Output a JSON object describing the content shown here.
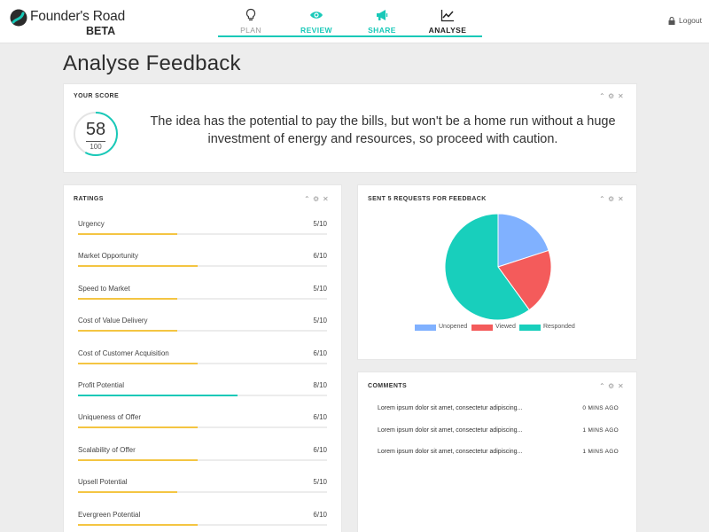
{
  "app": {
    "name_light": "Founder's",
    "name_bold": "Road",
    "badge": "BETA",
    "accent": "#18c9b8"
  },
  "nav": {
    "items": [
      {
        "label": "PLAN",
        "icon": "lightbulb-icon",
        "state": "done"
      },
      {
        "label": "REVIEW",
        "icon": "eye-icon",
        "state": "done"
      },
      {
        "label": "SHARE",
        "icon": "megaphone-icon",
        "state": "done"
      },
      {
        "label": "ANALYSE",
        "icon": "line-chart-icon",
        "state": "active"
      }
    ],
    "logout": "Logout"
  },
  "page": {
    "title": "Analyse Feedback"
  },
  "score_card": {
    "title": "YOUR SCORE",
    "score": "58",
    "max": "100",
    "score_fraction": 0.58,
    "summary": "The idea has the potential to pay the bills, but won't be a home run without a huge investment of energy and resources, so proceed with caution."
  },
  "ratings_card": {
    "title": "RATINGS",
    "items": [
      {
        "label": "Urgency",
        "value": "5/10",
        "score": 5,
        "color": "#f4c542"
      },
      {
        "label": "Market Opportunity",
        "value": "6/10",
        "score": 6,
        "color": "#f4c542"
      },
      {
        "label": "Speed to Market",
        "value": "5/10",
        "score": 5,
        "color": "#f4c542"
      },
      {
        "label": "Cost of Value Delivery",
        "value": "5/10",
        "score": 5,
        "color": "#f4c542"
      },
      {
        "label": "Cost of Customer Acquisition",
        "value": "6/10",
        "score": 6,
        "color": "#f4c542"
      },
      {
        "label": "Profit Potential",
        "value": "8/10",
        "score": 8,
        "color": "#18c9b8"
      },
      {
        "label": "Uniqueness of Offer",
        "value": "6/10",
        "score": 6,
        "color": "#f4c542"
      },
      {
        "label": "Scalability of Offer",
        "value": "6/10",
        "score": 6,
        "color": "#f4c542"
      },
      {
        "label": "Upsell Potential",
        "value": "5/10",
        "score": 5,
        "color": "#f4c542"
      },
      {
        "label": "Evergreen Potential",
        "value": "6/10",
        "score": 6,
        "color": "#f4c542"
      }
    ]
  },
  "feedback_card": {
    "title": "SENT 5 REQUESTS FOR FEEDBACK",
    "chart_data": {
      "type": "pie",
      "categories": [
        "Unopened",
        "Viewed",
        "Responded"
      ],
      "values": [
        1,
        1,
        3
      ],
      "colors": [
        "#80b1ff",
        "#f45b5b",
        "#18cfbc"
      ],
      "legend": "bottom"
    }
  },
  "comments_card": {
    "title": "COMMENTS",
    "items": [
      {
        "text": "Lorem ipsum dolor sit amet, consectetur adipiscing...",
        "time": "0 MINS AGO"
      },
      {
        "text": "Lorem ipsum dolor sit amet, consectetur adipiscing...",
        "time": "1 MINS AGO"
      },
      {
        "text": "Lorem ipsum dolor sit amet, consectetur adipiscing...",
        "time": "1 MINS AGO"
      }
    ]
  }
}
